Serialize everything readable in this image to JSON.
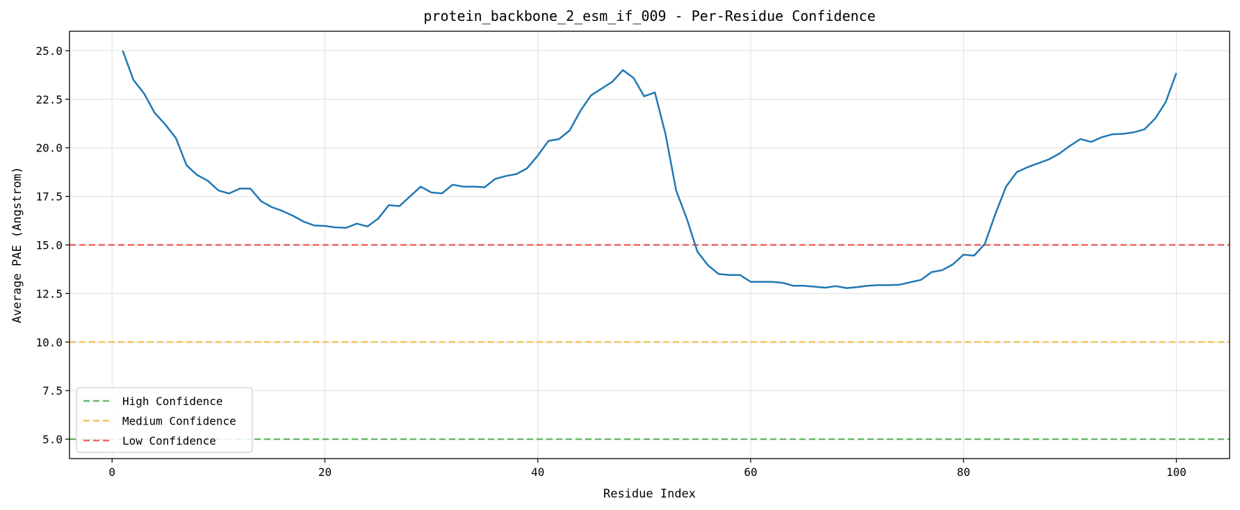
{
  "chart_data": {
    "type": "line",
    "title": "protein_backbone_2_esm_if_009 - Per-Residue Confidence",
    "xlabel": "Residue Index",
    "ylabel": "Average PAE (Angstrom)",
    "xlim": [
      -4,
      105
    ],
    "ylim": [
      4,
      26
    ],
    "xticks": [
      0,
      20,
      40,
      60,
      80,
      100
    ],
    "yticks": [
      5.0,
      7.5,
      10.0,
      12.5,
      15.0,
      17.5,
      20.0,
      22.5,
      25.0
    ],
    "grid": true,
    "legend_position": "lower-left",
    "series": [
      {
        "color": "#1f77b4",
        "x": [
          1,
          2,
          3,
          4,
          5,
          6,
          7,
          8,
          9,
          10,
          11,
          12,
          13,
          14,
          15,
          16,
          17,
          18,
          19,
          20,
          21,
          22,
          23,
          24,
          25,
          26,
          27,
          28,
          29,
          30,
          31,
          32,
          33,
          34,
          35,
          36,
          37,
          38,
          39,
          40,
          41,
          42,
          43,
          44,
          45,
          46,
          47,
          48,
          49,
          50,
          51,
          52,
          53,
          54,
          55,
          56,
          57,
          58,
          59,
          60,
          61,
          62,
          63,
          64,
          65,
          66,
          67,
          68,
          69,
          70,
          71,
          72,
          73,
          74,
          75,
          76,
          77,
          78,
          79,
          80,
          81,
          82,
          83,
          84,
          85,
          86,
          87,
          88,
          89,
          90,
          91,
          92,
          93,
          94,
          95,
          96,
          97,
          98,
          99,
          100
        ],
        "values": [
          25.0,
          23.5,
          22.8,
          21.8,
          21.2,
          20.5,
          19.1,
          18.6,
          18.3,
          17.8,
          17.65,
          17.9,
          17.9,
          17.25,
          16.95,
          16.75,
          16.5,
          16.2,
          16.0,
          15.98,
          15.9,
          15.88,
          16.1,
          15.95,
          16.35,
          17.05,
          17.0,
          17.5,
          18.0,
          17.7,
          17.65,
          18.1,
          18.0,
          18.0,
          17.97,
          18.4,
          18.55,
          18.65,
          18.95,
          19.6,
          20.35,
          20.45,
          20.9,
          21.9,
          22.7,
          23.05,
          23.4,
          24.0,
          23.6,
          22.65,
          22.85,
          20.7,
          17.8,
          16.35,
          14.65,
          13.95,
          13.5,
          13.45,
          13.45,
          13.1,
          13.1,
          13.1,
          13.05,
          12.9,
          12.9,
          12.85,
          12.8,
          12.88,
          12.78,
          12.83,
          12.9,
          12.93,
          12.93,
          12.95,
          13.08,
          13.2,
          13.6,
          13.7,
          14.0,
          14.5,
          14.45,
          15.05,
          16.6,
          18.0,
          18.75,
          19.0,
          19.2,
          19.4,
          19.7,
          20.1,
          20.45,
          20.3,
          20.55,
          20.7,
          20.72,
          20.8,
          20.95,
          21.5,
          22.35,
          23.85
        ]
      }
    ],
    "reference_lines": [
      {
        "name": "High Confidence",
        "y": 5.0,
        "color": "#4caf50"
      },
      {
        "name": "Medium Confidence",
        "y": 10.0,
        "color": "#f5b942"
      },
      {
        "name": "Low Confidence",
        "y": 15.0,
        "color": "#f05050"
      }
    ]
  }
}
